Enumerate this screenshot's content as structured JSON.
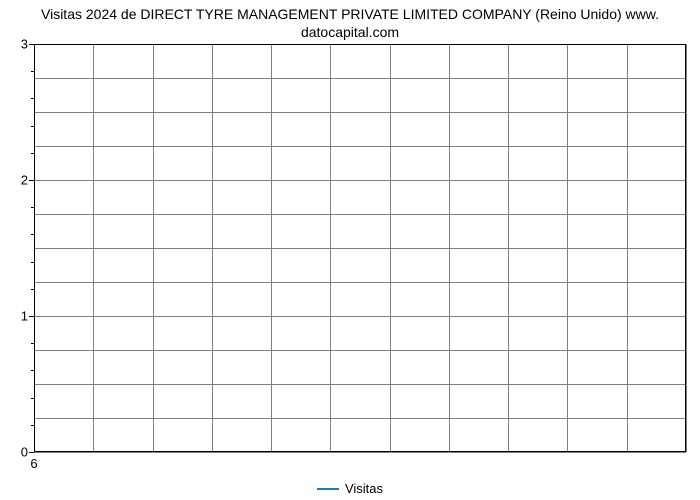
{
  "chart": {
    "type": "line",
    "title_line1": "Visitas 2024 de DIRECT TYRE MANAGEMENT PRIVATE LIMITED COMPANY (Reino Unido) www.",
    "title_line2": "datocapital.com",
    "title_fontsize": 14,
    "background_color": "#ffffff",
    "border_color": "#000000",
    "grid_color": "#7f7f7f",
    "x": {
      "ticks": [
        6
      ],
      "labels": [
        "6"
      ],
      "grid_positions_pct": [
        0,
        9.09,
        18.18,
        27.27,
        36.36,
        45.45,
        54.55,
        63.64,
        72.73,
        81.82,
        90.91,
        100
      ]
    },
    "y": {
      "min": 0,
      "max": 3,
      "ticks": [
        0,
        1,
        2,
        3
      ],
      "labels": [
        "0",
        "1",
        "2",
        "3"
      ],
      "minor_step": 0.2,
      "grid_positions_pct": [
        0,
        8.33,
        16.67,
        25,
        33.33,
        41.67,
        50,
        58.33,
        66.67,
        75,
        83.33,
        91.67,
        100
      ]
    },
    "series": [
      {
        "name": "Visitas",
        "color": "#1f77b4",
        "line_width": 2,
        "data": []
      }
    ],
    "legend": {
      "position": "bottom",
      "label": "Visitas",
      "color": "#1f77b4"
    }
  }
}
